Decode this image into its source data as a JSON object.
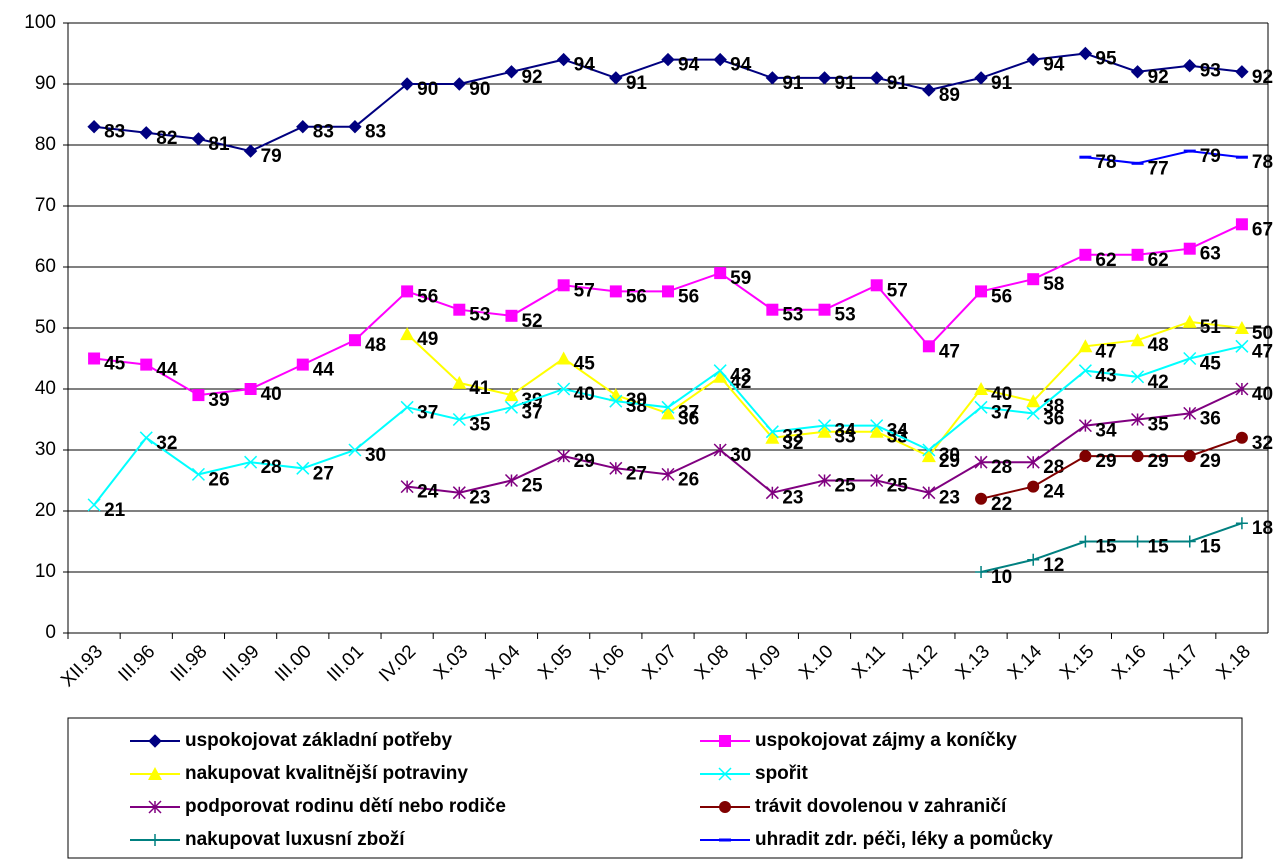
{
  "chart_data": {
    "type": "line",
    "categories": [
      "XII.93",
      "III.96",
      "III.98",
      "III.99",
      "III.00",
      "III.01",
      "IV.02",
      "X.03",
      "X.04",
      "X.05",
      "X.06",
      "X.07",
      "X.08",
      "X.09",
      "X.10",
      "X.11",
      "X.12",
      "X.13",
      "X.14",
      "X.15",
      "X.16",
      "X.17",
      "X.18"
    ],
    "ylim": [
      0,
      100
    ],
    "yticks": [
      0,
      10,
      20,
      30,
      40,
      50,
      60,
      70,
      80,
      90,
      100
    ],
    "grid": true,
    "series": [
      {
        "name": "uspokojovat základní potřeby",
        "color": "#000080",
        "marker": "diamond",
        "values": [
          83,
          82,
          81,
          79,
          83,
          83,
          90,
          90,
          92,
          94,
          91,
          94,
          94,
          91,
          91,
          91,
          89,
          91,
          94,
          95,
          92,
          93,
          92
        ]
      },
      {
        "name": "uspokojovat zájmy a koníčky",
        "color": "#ff00ff",
        "marker": "square",
        "values": [
          45,
          44,
          39,
          40,
          44,
          48,
          56,
          53,
          52,
          57,
          56,
          56,
          59,
          53,
          53,
          57,
          47,
          56,
          58,
          62,
          62,
          63,
          67
        ]
      },
      {
        "name": "nakupovat kvalitnější potraviny",
        "color": "#ffff00",
        "marker": "triangle",
        "values": [
          null,
          null,
          null,
          null,
          null,
          null,
          49,
          41,
          39,
          45,
          39,
          36,
          42,
          32,
          33,
          33,
          29,
          40,
          38,
          47,
          48,
          51,
          50
        ]
      },
      {
        "name": "spořit",
        "color": "#00ffff",
        "marker": "x",
        "values": [
          21,
          32,
          26,
          28,
          27,
          30,
          37,
          35,
          37,
          40,
          38,
          37,
          43,
          33,
          34,
          34,
          30,
          37,
          36,
          43,
          42,
          45,
          47
        ]
      },
      {
        "name": "podporovat rodinu dětí nebo rodiče",
        "color": "#800080",
        "marker": "star",
        "values": [
          null,
          null,
          null,
          null,
          null,
          null,
          24,
          23,
          25,
          29,
          27,
          26,
          30,
          23,
          25,
          25,
          23,
          28,
          28,
          34,
          35,
          36,
          40
        ]
      },
      {
        "name": "trávit dovolenou v zahraničí",
        "color": "#800000",
        "marker": "circle",
        "values": [
          null,
          null,
          null,
          null,
          null,
          null,
          null,
          null,
          null,
          null,
          null,
          null,
          null,
          null,
          null,
          null,
          null,
          22,
          24,
          29,
          29,
          29,
          32
        ]
      },
      {
        "name": "nakupovat luxusní zboží",
        "color": "#008080",
        "marker": "plus",
        "values": [
          null,
          null,
          null,
          null,
          null,
          null,
          null,
          null,
          null,
          null,
          null,
          null,
          null,
          null,
          null,
          null,
          null,
          10,
          12,
          15,
          15,
          15,
          18
        ]
      },
      {
        "name": "uhradit zdr. péči, léky a pomůcky",
        "color": "#0000ff",
        "marker": "dash",
        "values": [
          null,
          null,
          null,
          null,
          null,
          null,
          null,
          null,
          null,
          null,
          null,
          null,
          null,
          null,
          null,
          null,
          null,
          null,
          null,
          78,
          77,
          79,
          78
        ]
      }
    ]
  }
}
